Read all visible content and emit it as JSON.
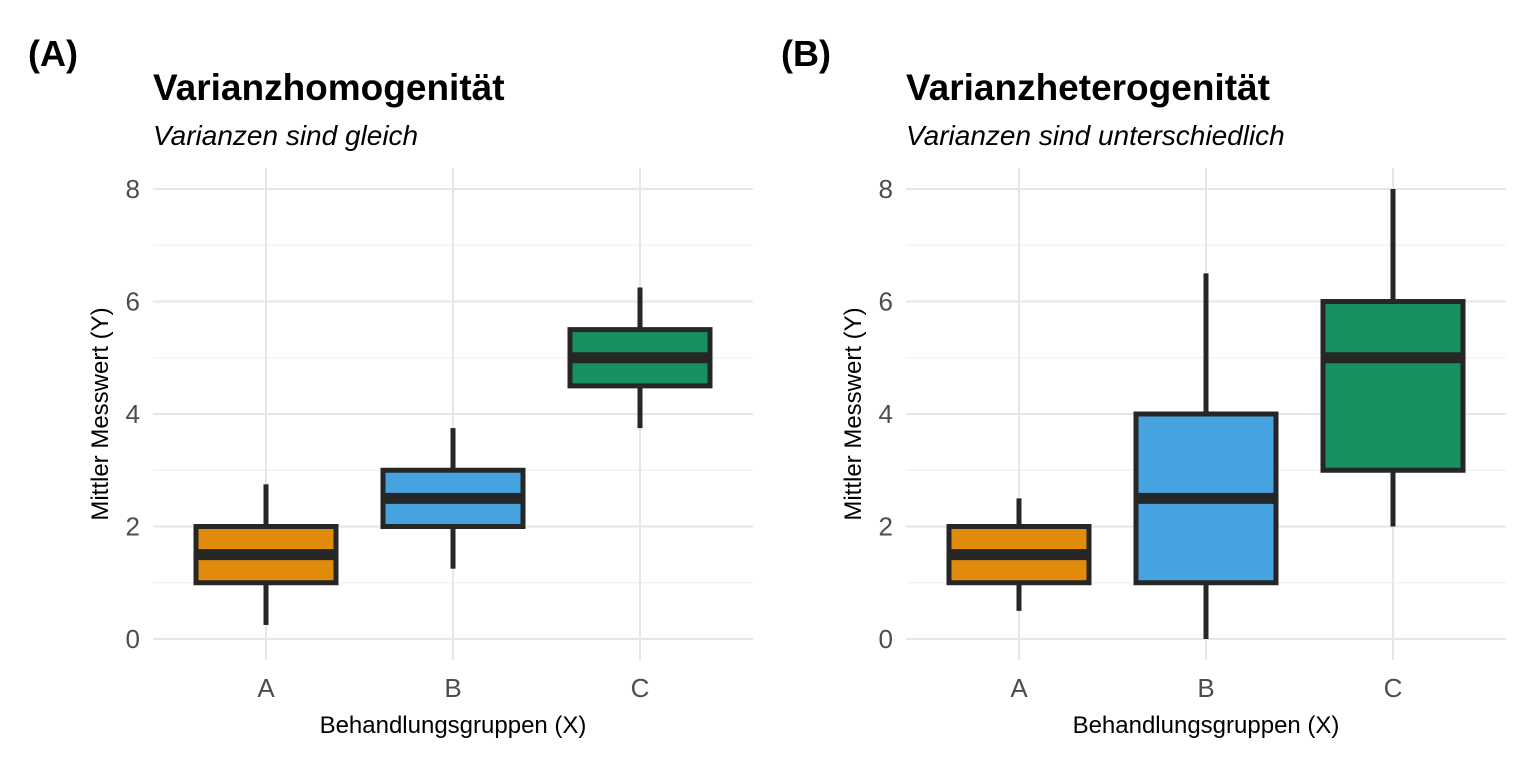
{
  "chart_data": [
    {
      "type": "boxplot",
      "panel_tag": "(A)",
      "title": "Varianzhomogenität",
      "subtitle": "Varianzen sind gleich",
      "xlabel": "Behandlungsgruppen (X)",
      "ylabel": "Mittler Messwert (Y)",
      "ylim": [
        -0.3,
        8.4
      ],
      "yticks": [
        0,
        2,
        4,
        6,
        8
      ],
      "categories": [
        "A",
        "B",
        "C"
      ],
      "boxes": [
        {
          "group": "A",
          "whisker_low": 0.25,
          "q1": 1.0,
          "median": 1.5,
          "q3": 2.0,
          "whisker_high": 2.75,
          "color": "#E08B0B"
        },
        {
          "group": "B",
          "whisker_low": 1.25,
          "q1": 2.0,
          "median": 2.5,
          "q3": 3.0,
          "whisker_high": 3.75,
          "color": "#47A3E0"
        },
        {
          "group": "C",
          "whisker_low": 3.75,
          "q1": 4.5,
          "median": 5.0,
          "q3": 5.5,
          "whisker_high": 6.25,
          "color": "#17915F"
        }
      ],
      "grid": true
    },
    {
      "type": "boxplot",
      "panel_tag": "(B)",
      "title": "Varianzheterogenität",
      "subtitle": "Varianzen sind unterschiedlich",
      "xlabel": "Behandlungsgruppen (X)",
      "ylabel": "Mittler Messwert (Y)",
      "ylim": [
        -0.3,
        8.4
      ],
      "yticks": [
        0,
        2,
        4,
        6,
        8
      ],
      "categories": [
        "A",
        "B",
        "C"
      ],
      "boxes": [
        {
          "group": "A",
          "whisker_low": 0.5,
          "q1": 1.0,
          "median": 1.5,
          "q3": 2.0,
          "whisker_high": 2.5,
          "color": "#E08B0B"
        },
        {
          "group": "B",
          "whisker_low": 0.0,
          "q1": 1.0,
          "median": 2.5,
          "q3": 4.0,
          "whisker_high": 6.5,
          "color": "#47A3E0"
        },
        {
          "group": "C",
          "whisker_low": 2.0,
          "q1": 3.0,
          "median": 5.0,
          "q3": 6.0,
          "whisker_high": 8.0,
          "color": "#17915F"
        }
      ],
      "grid": true
    }
  ]
}
